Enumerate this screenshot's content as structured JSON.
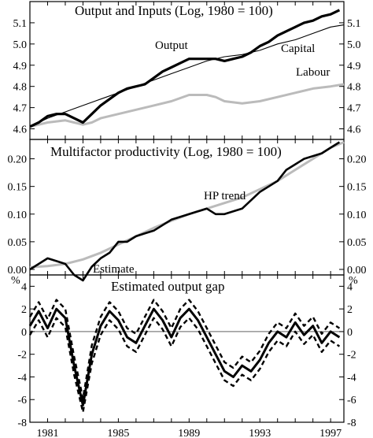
{
  "chart_data": [
    {
      "type": "line",
      "title": "Output and Inputs (Log, 1980 = 100)",
      "xlim": [
        1980,
        1997.75
      ],
      "ylim": [
        4.55,
        5.2
      ],
      "yticks": [
        "4.6",
        "4.7",
        "4.8",
        "4.9",
        "5.0",
        "5.1"
      ],
      "ytick_values": [
        4.6,
        4.7,
        4.8,
        4.9,
        5.0,
        5.1
      ],
      "annotations": [
        "Output",
        "Capital",
        "Labour"
      ],
      "series": [
        {
          "name": "Output",
          "color": "#000000",
          "x": [
            1980,
            1980.5,
            1981,
            1981.5,
            1982,
            1982.5,
            1983,
            1983.5,
            1984,
            1984.5,
            1985,
            1985.5,
            1986,
            1986.5,
            1987,
            1987.5,
            1988,
            1988.5,
            1989,
            1989.5,
            1990,
            1990.5,
            1991,
            1991.5,
            1992,
            1992.5,
            1993,
            1993.5,
            1994,
            1994.5,
            1995,
            1995.5,
            1996,
            1996.5,
            1997,
            1997.5
          ],
          "y": [
            4.61,
            4.63,
            4.66,
            4.67,
            4.67,
            4.65,
            4.63,
            4.67,
            4.71,
            4.74,
            4.77,
            4.79,
            4.8,
            4.81,
            4.84,
            4.87,
            4.89,
            4.91,
            4.93,
            4.93,
            4.93,
            4.93,
            4.92,
            4.93,
            4.94,
            4.96,
            4.99,
            5.01,
            5.04,
            5.06,
            5.08,
            5.1,
            5.11,
            5.13,
            5.14,
            5.16
          ]
        },
        {
          "name": "Capital",
          "color": "#000000",
          "x": [
            1980,
            1981,
            1982,
            1983,
            1984,
            1985,
            1986,
            1987,
            1988,
            1989,
            1990,
            1991,
            1992,
            1993,
            1994,
            1995,
            1996,
            1997,
            1997.75
          ],
          "y": [
            4.61,
            4.65,
            4.68,
            4.71,
            4.74,
            4.77,
            4.8,
            4.83,
            4.86,
            4.89,
            4.92,
            4.94,
            4.95,
            4.97,
            5.0,
            5.02,
            5.05,
            5.08,
            5.09
          ]
        },
        {
          "name": "Labour",
          "color": "#bbbbbb",
          "x": [
            1980,
            1981,
            1982,
            1982.5,
            1983,
            1983.5,
            1984,
            1985,
            1986,
            1987,
            1988,
            1989,
            1990,
            1990.5,
            1991,
            1992,
            1993,
            1994,
            1995,
            1996,
            1997,
            1997.75
          ],
          "y": [
            4.61,
            4.63,
            4.64,
            4.63,
            4.62,
            4.63,
            4.65,
            4.67,
            4.69,
            4.71,
            4.73,
            4.76,
            4.76,
            4.75,
            4.73,
            4.72,
            4.73,
            4.75,
            4.77,
            4.79,
            4.8,
            4.81
          ]
        }
      ]
    },
    {
      "type": "line",
      "title": "Multifactor productivity (Log, 1980 = 100)",
      "xlim": [
        1980,
        1997.75
      ],
      "ylim": [
        -0.01,
        0.235
      ],
      "yticks": [
        "0.00",
        "0.05",
        "0.10",
        "0.15",
        "0.20"
      ],
      "ytick_values": [
        0.0,
        0.05,
        0.1,
        0.15,
        0.2
      ],
      "annotations": [
        "HP trend",
        "Estimate"
      ],
      "series": [
        {
          "name": "Estimate",
          "color": "#000000",
          "x": [
            1980,
            1980.5,
            1981,
            1981.5,
            1982,
            1982.5,
            1983,
            1983.5,
            1984,
            1984.5,
            1985,
            1985.5,
            1986,
            1986.5,
            1987,
            1987.5,
            1988,
            1988.5,
            1989,
            1989.5,
            1990,
            1990.5,
            1991,
            1991.5,
            1992,
            1992.5,
            1993,
            1993.5,
            1994,
            1994.5,
            1995,
            1995.5,
            1996,
            1996.5,
            1997,
            1997.5
          ],
          "y": [
            0.0,
            0.01,
            0.02,
            0.015,
            0.01,
            -0.01,
            -0.02,
            0.005,
            0.02,
            0.03,
            0.05,
            0.05,
            0.06,
            0.065,
            0.07,
            0.08,
            0.09,
            0.095,
            0.1,
            0.105,
            0.11,
            0.1,
            0.1,
            0.105,
            0.11,
            0.125,
            0.14,
            0.15,
            0.16,
            0.18,
            0.19,
            0.2,
            0.205,
            0.21,
            0.22,
            0.23
          ]
        },
        {
          "name": "HP trend",
          "color": "#bbbbbb",
          "x": [
            1980,
            1981,
            1982,
            1983,
            1984,
            1985,
            1986,
            1987,
            1988,
            1989,
            1990,
            1991,
            1992,
            1993,
            1994,
            1995,
            1996,
            1997,
            1997.75
          ],
          "y": [
            0.004,
            0.006,
            0.01,
            0.018,
            0.03,
            0.045,
            0.06,
            0.075,
            0.088,
            0.1,
            0.11,
            0.12,
            0.13,
            0.145,
            0.16,
            0.18,
            0.2,
            0.22,
            0.23
          ]
        }
      ]
    },
    {
      "type": "line",
      "title": "Estimated output gap",
      "xlim": [
        1980,
        1997.75
      ],
      "ylim": [
        -8,
        5
      ],
      "yticks": [
        "-8",
        "-6",
        "-4",
        "-2",
        "0",
        "2",
        "4"
      ],
      "ytick_values": [
        -8,
        -6,
        -4,
        -2,
        0,
        2,
        4
      ],
      "unit_label": "%",
      "xticks": [
        "1981",
        "1985",
        "1989",
        "1993",
        "1997"
      ],
      "xtick_values": [
        1981,
        1985,
        1989,
        1993,
        1997
      ],
      "series": [
        {
          "name": "",
          "style": "solid",
          "color": "#000000",
          "x": [
            1980,
            1980.5,
            1981,
            1981.5,
            1982,
            1982.5,
            1983,
            1983.5,
            1984,
            1984.5,
            1985,
            1985.5,
            1986,
            1986.5,
            1987,
            1987.5,
            1988,
            1988.5,
            1989,
            1989.5,
            1990,
            1990.5,
            1991,
            1991.5,
            1992,
            1992.5,
            1993,
            1993.5,
            1994,
            1994.5,
            1995,
            1995.5,
            1996,
            1996.5,
            1997,
            1997.5
          ],
          "y": [
            0.5,
            1.8,
            0.3,
            2.0,
            1.2,
            -3.0,
            -6.5,
            -2.0,
            0.5,
            1.8,
            1.0,
            -0.5,
            -1.0,
            0.5,
            2.0,
            1.0,
            -0.5,
            1.2,
            2.0,
            1.0,
            -0.5,
            -2.0,
            -3.5,
            -4.0,
            -3.0,
            -3.5,
            -2.5,
            -1.0,
            0.0,
            -0.5,
            0.8,
            -0.3,
            0.5,
            -1.0,
            0.0,
            -0.5
          ]
        },
        {
          "name": "",
          "style": "dashed",
          "color": "#000000",
          "x": [
            1980,
            1980.5,
            1981,
            1981.5,
            1982,
            1982.5,
            1983,
            1983.5,
            1984,
            1984.5,
            1985,
            1985.5,
            1986,
            1986.5,
            1987,
            1987.5,
            1988,
            1988.5,
            1989,
            1989.5,
            1990,
            1990.5,
            1991,
            1991.5,
            1992,
            1992.5,
            1993,
            1993.5,
            1994,
            1994.5,
            1995,
            1995.5,
            1996,
            1996.5,
            1997,
            1997.5
          ],
          "y": [
            1.3,
            2.6,
            1.1,
            2.8,
            2.0,
            -2.2,
            -5.9,
            -1.2,
            1.3,
            2.6,
            1.8,
            0.3,
            -0.2,
            1.3,
            2.8,
            1.8,
            0.3,
            2.0,
            2.8,
            1.8,
            0.3,
            -1.2,
            -2.7,
            -3.2,
            -2.2,
            -2.7,
            -1.7,
            -0.2,
            0.8,
            0.3,
            1.6,
            0.5,
            1.3,
            -0.2,
            0.8,
            0.3
          ]
        },
        {
          "name": "",
          "style": "dashed",
          "color": "#000000",
          "x": [
            1980,
            1980.5,
            1981,
            1981.5,
            1982,
            1982.5,
            1983,
            1983.5,
            1984,
            1984.5,
            1985,
            1985.5,
            1986,
            1986.5,
            1987,
            1987.5,
            1988,
            1988.5,
            1989,
            1989.5,
            1990,
            1990.5,
            1991,
            1991.5,
            1992,
            1992.5,
            1993,
            1993.5,
            1994,
            1994.5,
            1995,
            1995.5,
            1996,
            1996.5,
            1997,
            1997.5
          ],
          "y": [
            -0.3,
            1.0,
            -0.5,
            1.2,
            0.4,
            -3.8,
            -7.1,
            -2.8,
            -0.3,
            1.0,
            0.2,
            -1.3,
            -1.8,
            -0.3,
            1.2,
            0.2,
            -1.3,
            0.4,
            1.2,
            0.2,
            -1.3,
            -2.8,
            -4.3,
            -4.8,
            -3.8,
            -4.3,
            -3.3,
            -1.8,
            -0.8,
            -1.3,
            0.0,
            -1.1,
            -0.3,
            -1.8,
            -0.8,
            -1.3
          ]
        }
      ]
    }
  ]
}
